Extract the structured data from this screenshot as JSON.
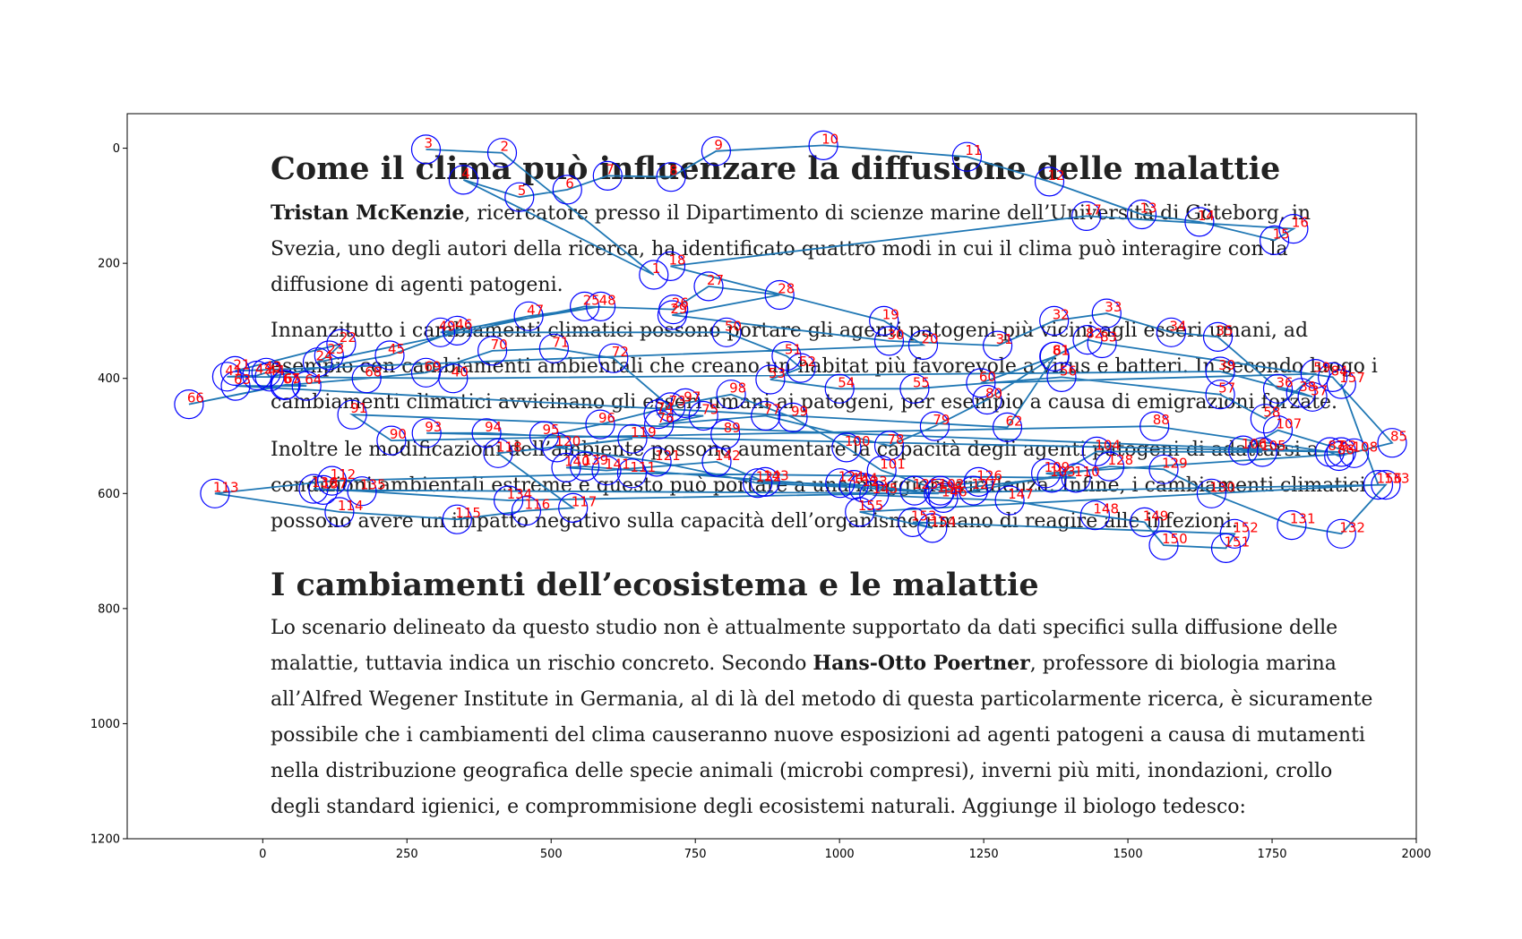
{
  "document": {
    "title1": "Come il clima può influenzare la diffusione delle malattie",
    "p1": [
      [
        {
          "t": "Tristan McKenzie",
          "b": true
        },
        {
          "t": ", ricercatore presso il Dipartimento di scienze marine dell’Università di Göteborg, in"
        }
      ],
      [
        {
          "t": "Svezia, uno degli autori della ricerca, ha identificato quattro modi in cui il clima può interagire con la"
        }
      ],
      [
        {
          "t": "diffusione di agenti patogeni."
        }
      ]
    ],
    "p2": [
      [
        {
          "t": "Innanzitutto i cambiamenti climatici possono portare gli agenti patogeni più vicini agli esseri umani, ad"
        }
      ],
      [
        {
          "t": "esempio con cambiamenti ambientali che creano un habitat più favorevole a virus e batteri. In secondo luogo i"
        }
      ],
      [
        {
          "t": "cambiamenti climatici avvicinano gli esseri umani ai patogeni, per esempio a causa  di emigrazioni forzate."
        }
      ]
    ],
    "p3": [
      [
        {
          "t": "Inoltre  le modificazioni dell’ambiente possono aumentare la capacità degli agenti patogeni di adattarsi a"
        }
      ],
      [
        {
          "t": "condizioni ambientali estreme  e questo può portare a una maggiore virulenza. Infine, i cambiamenti climatici"
        }
      ],
      [
        {
          "t": "possono avere un impatto negativo sulla capacità dell’organismo umano di reagire alle infezioni."
        }
      ]
    ],
    "title2": "I cambiamenti dell’ecosistema e le malattie",
    "p4": [
      [
        {
          "t": "Lo scenario delineato da questo studio non è attualmente supportato da dati specifici sulla diffusione delle"
        }
      ],
      [
        {
          "t": "malattie, tuttavia indica un rischio concreto. Secondo "
        },
        {
          "t": "Hans-Otto Poertner",
          "b": true
        },
        {
          "t": ", professore di biologia marina"
        }
      ],
      [
        {
          "t": "all’Alfred Wegener Institute in Germania, al di là del metodo di questa particolarmente ricerca, è sicuramente"
        }
      ],
      [
        {
          "t": "possibile che i cambiamenti del clima causeranno nuove esposizioni ad agenti patogeni a causa di mutamenti"
        }
      ],
      [
        {
          "t": "nella distribuzione geografica delle specie animali (microbi compresi), inverni più miti, inondazioni,  crollo"
        }
      ],
      [
        {
          "t": "degli standard igienici, e comprommisione degli ecosistemi naturali. Aggiunge il biologo tedesco:"
        }
      ]
    ]
  },
  "chart_data": {
    "type": "scatter",
    "subtype": "eye-tracking scanpath overlaid on text stimulus",
    "xlim": [
      -235,
      2000
    ],
    "ylim": [
      1200,
      -60
    ],
    "xticks": [
      0,
      250,
      500,
      750,
      1000,
      1250,
      1500,
      1750,
      2000
    ],
    "yticks": [
      0,
      200,
      400,
      600,
      800,
      1000,
      1200
    ],
    "colors": {
      "path": "#1f77b4",
      "marker": "#0000ff",
      "label": "#ff0000"
    },
    "fixations": [
      [
        1,
        678,
        220
      ],
      [
        2,
        415,
        8
      ],
      [
        3,
        283,
        2
      ],
      [
        4,
        348,
        55
      ],
      [
        5,
        445,
        85
      ],
      [
        6,
        528,
        72
      ],
      [
        7,
        598,
        48
      ],
      [
        8,
        708,
        50
      ],
      [
        9,
        786,
        5
      ],
      [
        10,
        972,
        -5
      ],
      [
        11,
        1221,
        15
      ],
      [
        12,
        1364,
        58
      ],
      [
        13,
        1524,
        115
      ],
      [
        14,
        1624,
        128
      ],
      [
        15,
        1754,
        160
      ],
      [
        16,
        1787,
        140
      ],
      [
        17,
        1428,
        118
      ],
      [
        18,
        707,
        205
      ],
      [
        19,
        1077,
        300
      ],
      [
        20,
        1145,
        342
      ],
      [
        21,
        -48,
        387
      ],
      [
        22,
        136,
        340
      ],
      [
        23,
        115,
        360
      ],
      [
        24,
        95,
        372
      ],
      [
        25,
        558,
        275
      ],
      [
        26,
        712,
        280
      ],
      [
        27,
        773,
        240
      ],
      [
        28,
        896,
        255
      ],
      [
        29,
        710,
        290
      ],
      [
        30,
        1086,
        335
      ],
      [
        31,
        1274,
        343
      ],
      [
        32,
        1372,
        300
      ],
      [
        33,
        1463,
        287
      ],
      [
        34,
        1575,
        320
      ],
      [
        35,
        1656,
        328
      ],
      [
        36,
        1760,
        418
      ],
      [
        37,
        1820,
        432
      ],
      [
        38,
        1800,
        425
      ],
      [
        39,
        1660,
        388
      ],
      [
        40,
        330,
        400
      ],
      [
        41,
        -62,
        397
      ],
      [
        42,
        -10,
        395
      ],
      [
        43,
        6,
        390
      ],
      [
        44,
        12,
        397
      ],
      [
        45,
        220,
        360
      ],
      [
        46,
        337,
        317
      ],
      [
        47,
        461,
        292
      ],
      [
        48,
        586,
        275
      ],
      [
        49,
        308,
        320
      ],
      [
        50,
        804,
        320
      ],
      [
        51,
        908,
        361
      ],
      [
        52,
        933,
        382
      ],
      [
        53,
        880,
        402
      ],
      [
        54,
        1000,
        418
      ],
      [
        55,
        1130,
        418
      ],
      [
        56,
        1385,
        398
      ],
      [
        57,
        1660,
        428
      ],
      [
        58,
        1738,
        470
      ],
      [
        59,
        1825,
        392
      ],
      [
        60,
        1245,
        408
      ],
      [
        61,
        1373,
        362
      ],
      [
        62,
        1291,
        485
      ],
      [
        63,
        -47,
        413
      ],
      [
        64,
        76,
        413
      ],
      [
        65,
        40,
        411
      ],
      [
        66,
        -128,
        445
      ],
      [
        67,
        38,
        412
      ],
      [
        68,
        180,
        400
      ],
      [
        69,
        283,
        390
      ],
      [
        70,
        398,
        352
      ],
      [
        71,
        505,
        348
      ],
      [
        72,
        608,
        365
      ],
      [
        73,
        707,
        450
      ],
      [
        74,
        686,
        462
      ],
      [
        75,
        764,
        465
      ],
      [
        76,
        687,
        480
      ],
      [
        77,
        872,
        465
      ],
      [
        78,
        1086,
        517
      ],
      [
        79,
        1165,
        483
      ],
      [
        80,
        1256,
        437
      ],
      [
        81,
        1372,
        362
      ],
      [
        82,
        1430,
        333
      ],
      [
        83,
        1455,
        339
      ],
      [
        84,
        1855,
        398
      ],
      [
        85,
        1958,
        512
      ],
      [
        86,
        1866,
        535
      ],
      [
        87,
        1850,
        528
      ],
      [
        88,
        1546,
        483
      ],
      [
        89,
        802,
        497
      ],
      [
        90,
        223,
        508
      ],
      [
        91,
        155,
        463
      ],
      [
        92,
        1870,
        528
      ],
      [
        93,
        284,
        495
      ],
      [
        94,
        388,
        495
      ],
      [
        95,
        488,
        500
      ],
      [
        96,
        585,
        480
      ],
      [
        97,
        733,
        443
      ],
      [
        98,
        812,
        428
      ],
      [
        99,
        919,
        468
      ],
      [
        100,
        1012,
        520
      ],
      [
        101,
        1073,
        560
      ],
      [
        102,
        1175,
        595
      ],
      [
        103,
        1368,
        573
      ],
      [
        104,
        1446,
        527
      ],
      [
        105,
        1733,
        528
      ],
      [
        106,
        1700,
        525
      ],
      [
        107,
        1760,
        490
      ],
      [
        108,
        1892,
        530
      ],
      [
        109,
        1358,
        565
      ],
      [
        110,
        1410,
        573
      ],
      [
        111,
        640,
        565
      ],
      [
        112,
        120,
        578
      ],
      [
        113,
        -83,
        600
      ],
      [
        114,
        133,
        632
      ],
      [
        115,
        337,
        645
      ],
      [
        116,
        457,
        630
      ],
      [
        117,
        538,
        625
      ],
      [
        118,
        408,
        530
      ],
      [
        119,
        641,
        505
      ],
      [
        120,
        510,
        520
      ],
      [
        121,
        683,
        545
      ],
      [
        122,
        858,
        582
      ],
      [
        123,
        1042,
        590
      ],
      [
        124,
        1001,
        582
      ],
      [
        125,
        1130,
        595
      ],
      [
        126,
        1241,
        580
      ],
      [
        127,
        1232,
        595
      ],
      [
        128,
        1468,
        553
      ],
      [
        129,
        1562,
        558
      ],
      [
        130,
        1645,
        600
      ],
      [
        131,
        1784,
        655
      ],
      [
        132,
        1870,
        670
      ],
      [
        133,
        1947,
        585
      ],
      [
        134,
        426,
        612
      ],
      [
        135,
        172,
        596
      ],
      [
        136,
        88,
        592
      ],
      [
        137,
        105,
        594
      ],
      [
        138,
        1172,
        600
      ],
      [
        139,
        558,
        553
      ],
      [
        140,
        526,
        555
      ],
      [
        141,
        596,
        560
      ],
      [
        142,
        787,
        545
      ],
      [
        143,
        871,
        580
      ],
      [
        144,
        1025,
        585
      ],
      [
        145,
        1060,
        603
      ],
      [
        146,
        1180,
        608
      ],
      [
        147,
        1295,
        612
      ],
      [
        148,
        1443,
        638
      ],
      [
        149,
        1529,
        650
      ],
      [
        150,
        1562,
        690
      ],
      [
        151,
        1670,
        695
      ],
      [
        152,
        1685,
        670
      ],
      [
        153,
        1127,
        650
      ],
      [
        154,
        1161,
        660
      ],
      [
        155,
        1035,
        632
      ],
      [
        156,
        1934,
        585
      ],
      [
        157,
        1870,
        410
      ]
    ],
    "scanpath_order": [
      3,
      2,
      1,
      4,
      5,
      6,
      7,
      8,
      9,
      10,
      11,
      12,
      13,
      14,
      15,
      16,
      17,
      18,
      19,
      20,
      21,
      22,
      23,
      24,
      25,
      26,
      27,
      28,
      29,
      30,
      31,
      32,
      33,
      34,
      35,
      36,
      37,
      38,
      39,
      40,
      41,
      42,
      43,
      44,
      45,
      46,
      47,
      48,
      49,
      50,
      51,
      52,
      53,
      54,
      55,
      56,
      57,
      58,
      59,
      60,
      61,
      62,
      63,
      64,
      65,
      66,
      67,
      68,
      69,
      70,
      71,
      72,
      73,
      74,
      75,
      76,
      77,
      78,
      79,
      80,
      81,
      82,
      83,
      84,
      85,
      86,
      87,
      88,
      89,
      90,
      91,
      92,
      93,
      94,
      95,
      96,
      97,
      98,
      99,
      100,
      101,
      102,
      103,
      104,
      105,
      106,
      107,
      108,
      109,
      110,
      111,
      112,
      113,
      114,
      115,
      116,
      117,
      118,
      119,
      120,
      121,
      122,
      123,
      124,
      125,
      126,
      127,
      128,
      129,
      130,
      131,
      132,
      133,
      134,
      135,
      136,
      137,
      138,
      139,
      140,
      141,
      142,
      143,
      144,
      145,
      146,
      147,
      148,
      149,
      150,
      151,
      152,
      153,
      154,
      155,
      156,
      157
    ]
  }
}
